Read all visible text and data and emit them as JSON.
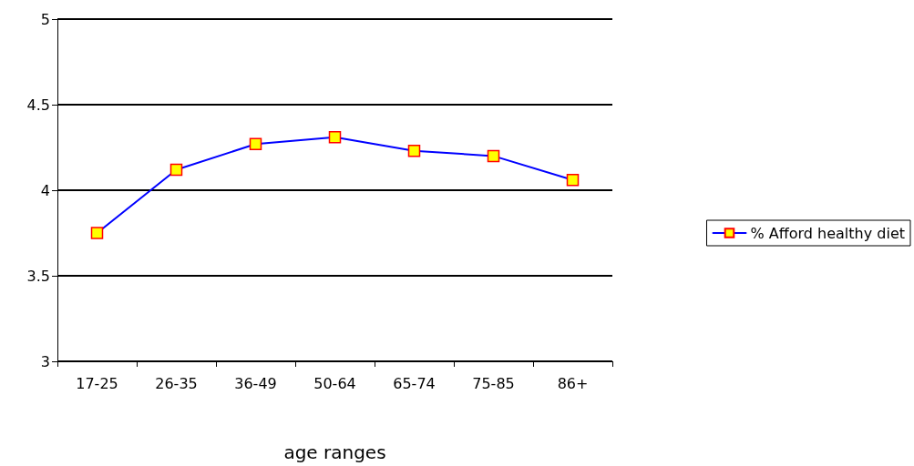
{
  "chart_data": {
    "type": "line",
    "xlabel": "age ranges",
    "categories": [
      "17-25",
      "26-35",
      "36-49",
      "50-64",
      "65-74",
      "75-85",
      "86+"
    ],
    "series": [
      {
        "name": "% Afford healthy diet",
        "color": "#0000ff",
        "values": [
          3.75,
          4.12,
          4.27,
          4.31,
          4.23,
          4.2,
          4.06
        ]
      }
    ],
    "ylim": [
      3,
      5
    ],
    "yticks": [
      3,
      3.5,
      4,
      4.5,
      5
    ],
    "grid": "y",
    "legend": "right",
    "marker": "square",
    "line_style": "solid"
  }
}
